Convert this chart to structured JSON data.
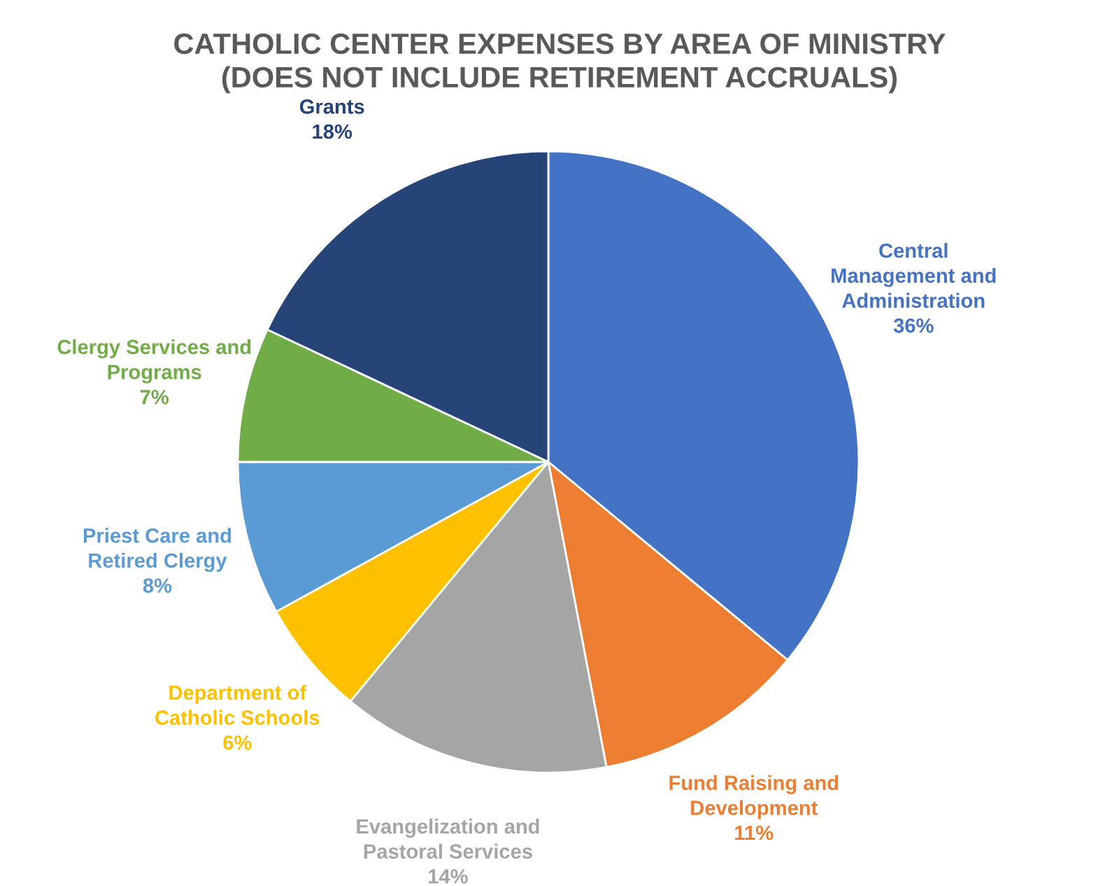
{
  "chart_data": {
    "type": "pie",
    "title": "CATHOLIC CENTER EXPENSES BY AREA OF MINISTRY\n(DOES NOT INCLUDE RETIREMENT ACCRUALS)",
    "categories": [
      "Central\nManagement and\nAdministration",
      "Fund Raising and\nDevelopment",
      "Evangelization and\nPastoral Services",
      "Department of\nCatholic Schools",
      "Priest Care and\nRetired Clergy",
      "Clergy Services and\nPrograms",
      "Grants"
    ],
    "values": [
      36,
      11,
      14,
      6,
      8,
      7,
      18
    ],
    "value_labels": [
      "36%",
      "11%",
      "14%",
      "6%",
      "8%",
      "7%",
      "18%"
    ],
    "colors": [
      "#4472c4",
      "#ed7d31",
      "#a5a5a5",
      "#ffc000",
      "#5b9bd5",
      "#70ad47",
      "#264478"
    ]
  }
}
